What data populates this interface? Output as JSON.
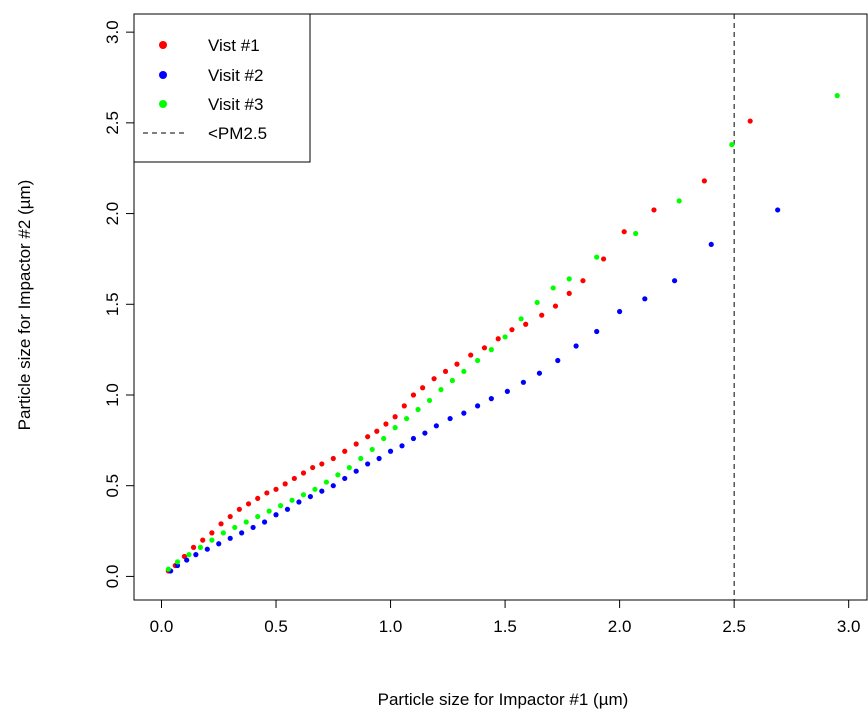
{
  "chart_data": {
    "type": "scatter",
    "xlabel": "Particle size for Impactor #1 (µm)",
    "ylabel": "Particle size for Impactor #2 (µm)",
    "xlim": [
      -0.12,
      3.08
    ],
    "ylim": [
      -0.13,
      3.1
    ],
    "xticks": [
      0.0,
      0.5,
      1.0,
      1.5,
      2.0,
      2.5,
      3.0
    ],
    "yticks": [
      0.0,
      0.5,
      1.0,
      1.5,
      2.0,
      2.5,
      3.0
    ],
    "xtick_labels": [
      "0.0",
      "0.5",
      "1.0",
      "1.5",
      "2.0",
      "2.5",
      "3.0"
    ],
    "ytick_labels": [
      "0.0",
      "0.5",
      "1.0",
      "1.5",
      "2.0",
      "2.5",
      "3.0"
    ],
    "grid": false,
    "legend_position": "top-left",
    "vline": {
      "x": 2.5,
      "label": "<PM2.5",
      "style": "dashed",
      "color": "#000000"
    },
    "series": [
      {
        "name": "Vist #1",
        "color": "#ff0000",
        "x": [
          0.03,
          0.06,
          0.1,
          0.14,
          0.18,
          0.22,
          0.26,
          0.3,
          0.34,
          0.38,
          0.42,
          0.46,
          0.5,
          0.54,
          0.58,
          0.62,
          0.66,
          0.7,
          0.75,
          0.8,
          0.85,
          0.9,
          0.94,
          0.98,
          1.02,
          1.06,
          1.1,
          1.14,
          1.19,
          1.24,
          1.29,
          1.35,
          1.41,
          1.47,
          1.53,
          1.59,
          1.66,
          1.72,
          1.78,
          1.84,
          1.93,
          2.02,
          2.15,
          2.37,
          2.57
        ],
        "y": [
          0.03,
          0.06,
          0.11,
          0.16,
          0.2,
          0.24,
          0.29,
          0.33,
          0.37,
          0.4,
          0.43,
          0.46,
          0.48,
          0.51,
          0.54,
          0.57,
          0.6,
          0.62,
          0.65,
          0.69,
          0.73,
          0.77,
          0.8,
          0.84,
          0.88,
          0.94,
          1.0,
          1.04,
          1.09,
          1.13,
          1.17,
          1.22,
          1.26,
          1.31,
          1.36,
          1.39,
          1.44,
          1.49,
          1.56,
          1.63,
          1.75,
          1.9,
          2.02,
          2.18,
          2.51
        ]
      },
      {
        "name": "Visit #2",
        "color": "#0000ff",
        "x": [
          0.04,
          0.07,
          0.11,
          0.15,
          0.2,
          0.25,
          0.3,
          0.35,
          0.4,
          0.45,
          0.5,
          0.55,
          0.6,
          0.65,
          0.7,
          0.75,
          0.8,
          0.85,
          0.9,
          0.95,
          1.0,
          1.05,
          1.1,
          1.15,
          1.2,
          1.26,
          1.32,
          1.38,
          1.44,
          1.51,
          1.58,
          1.65,
          1.73,
          1.81,
          1.9,
          2.0,
          2.11,
          2.24,
          2.4,
          2.69
        ],
        "y": [
          0.03,
          0.06,
          0.09,
          0.12,
          0.15,
          0.18,
          0.21,
          0.24,
          0.27,
          0.3,
          0.34,
          0.37,
          0.41,
          0.44,
          0.47,
          0.5,
          0.54,
          0.58,
          0.62,
          0.65,
          0.69,
          0.72,
          0.76,
          0.79,
          0.83,
          0.87,
          0.9,
          0.94,
          0.98,
          1.02,
          1.07,
          1.12,
          1.19,
          1.27,
          1.35,
          1.46,
          1.53,
          1.63,
          1.83,
          2.02
        ]
      },
      {
        "name": "Visit #3",
        "color": "#00ff00",
        "x": [
          0.03,
          0.07,
          0.12,
          0.17,
          0.22,
          0.27,
          0.32,
          0.37,
          0.42,
          0.47,
          0.52,
          0.57,
          0.62,
          0.67,
          0.72,
          0.77,
          0.82,
          0.87,
          0.92,
          0.97,
          1.02,
          1.07,
          1.12,
          1.17,
          1.22,
          1.27,
          1.32,
          1.38,
          1.44,
          1.5,
          1.57,
          1.64,
          1.71,
          1.78,
          1.9,
          2.07,
          2.26,
          2.49,
          2.95
        ],
        "y": [
          0.04,
          0.08,
          0.12,
          0.16,
          0.2,
          0.24,
          0.27,
          0.3,
          0.33,
          0.36,
          0.39,
          0.42,
          0.45,
          0.48,
          0.52,
          0.56,
          0.6,
          0.65,
          0.7,
          0.76,
          0.82,
          0.87,
          0.92,
          0.97,
          1.03,
          1.08,
          1.13,
          1.19,
          1.25,
          1.32,
          1.42,
          1.51,
          1.59,
          1.64,
          1.76,
          1.89,
          2.07,
          2.38,
          2.65
        ]
      }
    ]
  }
}
